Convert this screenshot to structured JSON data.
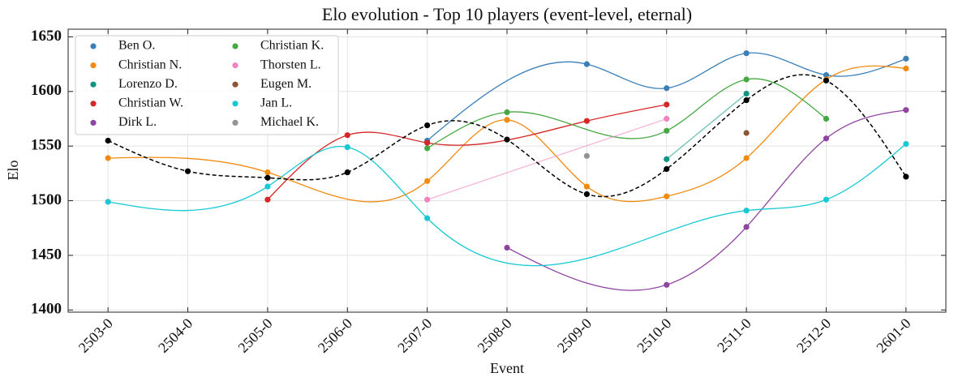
{
  "chart_data": {
    "type": "line",
    "title": "Elo evolution - Top 10 players (event-level, eternal)",
    "x_label": "Event",
    "y_label": "Elo",
    "categories": [
      "2503-0",
      "2504-0",
      "2505-0",
      "2506-0",
      "2507-0",
      "2508-0",
      "2509-0",
      "2510-0",
      "2511-0",
      "2512-0",
      "2601-0"
    ],
    "ylim": [
      1398,
      1657
    ],
    "yticks": [
      1400,
      1450,
      1500,
      1550,
      1600,
      1650
    ],
    "grid": true,
    "legend": "upper-left",
    "series": [
      {
        "name": "Ben O.",
        "color": "#3a7fb8",
        "x": [
          "2507-0",
          "2509-0",
          "2510-0",
          "2511-0",
          "2512-0",
          "2601-0"
        ],
        "values": [
          1555,
          1625,
          1603,
          1635,
          1615,
          1630
        ]
      },
      {
        "name": "Christian N.",
        "color": "#f28a0f",
        "x": [
          "2503-0",
          "2505-0",
          "2507-0",
          "2508-0",
          "2509-0",
          "2510-0",
          "2511-0",
          "2512-0",
          "2601-0"
        ],
        "values": [
          1539,
          1526,
          1518,
          1574,
          1513,
          1504,
          1539,
          1611,
          1621
        ]
      },
      {
        "name": "Lorenzo D.",
        "color": "#0e9484",
        "x": [
          "2510-0",
          "2511-0"
        ],
        "values": [
          1538,
          1598
        ]
      },
      {
        "name": "Christian W.",
        "color": "#d62728",
        "x": [
          "2505-0",
          "2506-0",
          "2507-0",
          "2509-0",
          "2510-0"
        ],
        "values": [
          1501,
          1560,
          1553,
          1573,
          1588
        ]
      },
      {
        "name": "Dirk L.",
        "color": "#8e44a0",
        "x": [
          "2508-0",
          "2510-0",
          "2511-0",
          "2512-0",
          "2601-0"
        ],
        "values": [
          1457,
          1423,
          1476,
          1557,
          1583
        ]
      },
      {
        "name": "Christian K.",
        "color": "#46a843",
        "x": [
          "2507-0",
          "2508-0",
          "2510-0",
          "2511-0",
          "2512-0"
        ],
        "values": [
          1548,
          1581,
          1564,
          1611,
          1575
        ]
      },
      {
        "name": "Thorsten L.",
        "color": "#ef84bf",
        "x": [
          "2507-0",
          "2510-0"
        ],
        "values": [
          1501,
          1575
        ]
      },
      {
        "name": "Eugen M.",
        "color": "#8c5634",
        "x": [
          "2511-0"
        ],
        "values": [
          1562
        ]
      },
      {
        "name": "Jan L.",
        "color": "#17c9d3",
        "x": [
          "2503-0",
          "2505-0",
          "2506-0",
          "2507-0",
          "2511-0",
          "2512-0",
          "2601-0"
        ],
        "values": [
          1499,
          1513,
          1549,
          1484,
          1491,
          1501,
          1552
        ]
      },
      {
        "name": "Michael K.",
        "color": "#939393",
        "x": [
          "2509-0"
        ],
        "values": [
          1541
        ]
      },
      {
        "color": "#000000",
        "dashed": true,
        "x": [
          "2503-0",
          "2504-0",
          "2505-0",
          "2506-0",
          "2507-0",
          "2508-0",
          "2509-0",
          "2510-0",
          "2511-0",
          "2512-0",
          "2601-0"
        ],
        "values": [
          1555,
          1527,
          1521,
          1526,
          1569,
          1556,
          1506,
          1529,
          1592,
          1610,
          1522
        ]
      }
    ]
  }
}
